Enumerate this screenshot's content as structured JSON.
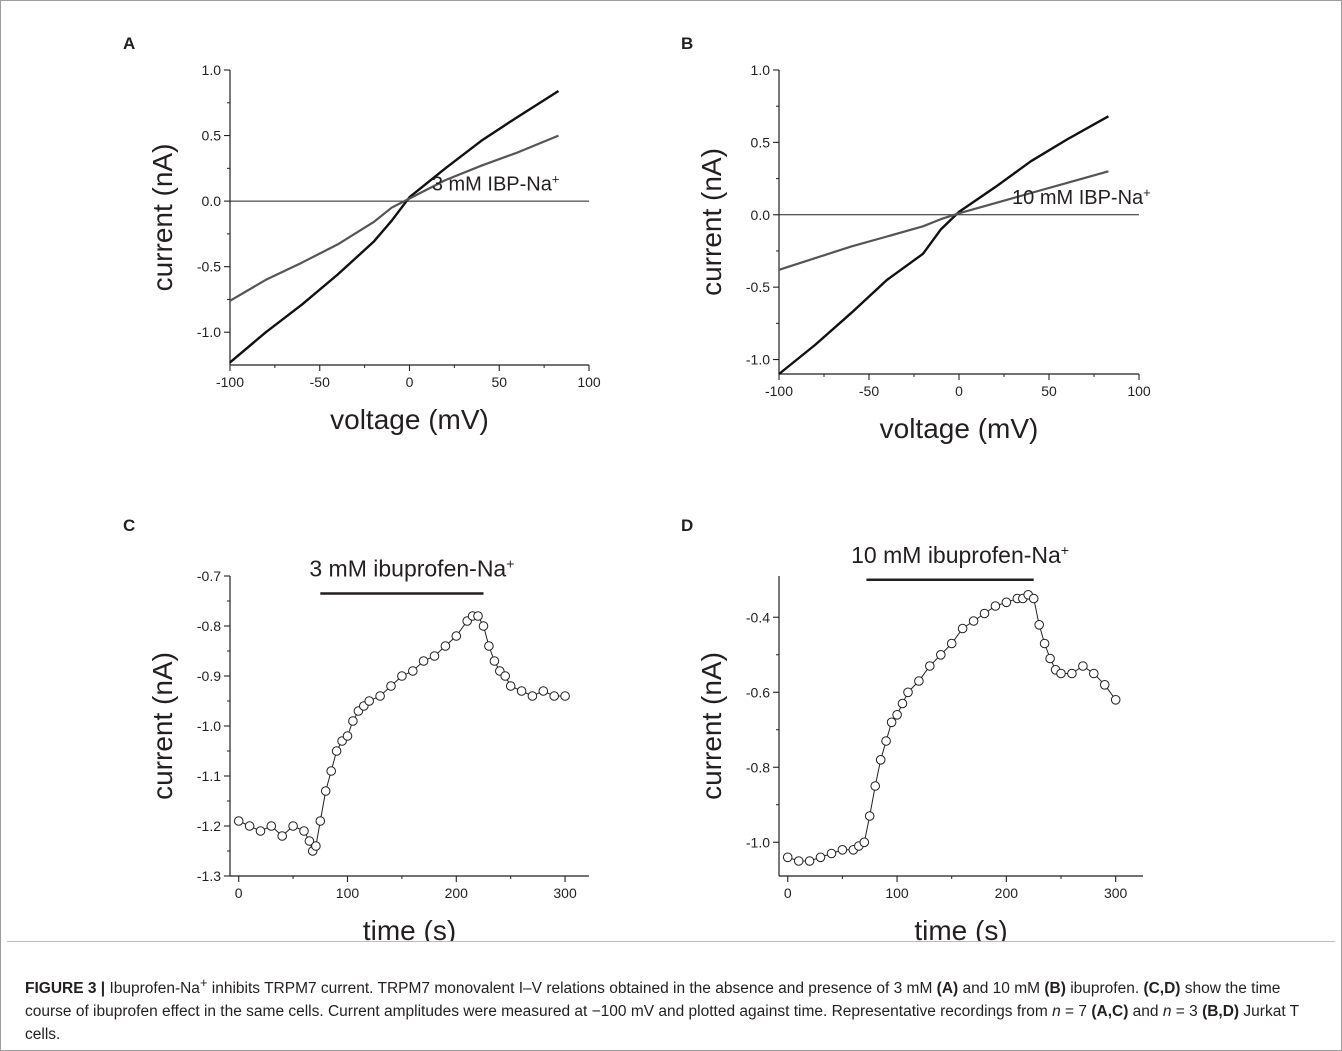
{
  "figure": {
    "caption": {
      "label": "FIGURE 3",
      "sep": "|",
      "s1": "Ibuprofen-Na",
      "s1sup": "+",
      "s2": " inhibits TRPM7 current. TRPM7 monovalent I–V relations obtained in the absence and presence of 3 mM ",
      "r1": "(A)",
      "s3": " and 10 mM ",
      "r2": "(B)",
      "s4": " ibuprofen. ",
      "r3": "(C,D)",
      "s5": " show the time course of ibuprofen effect in the same cells. Current amplitudes were measured at −100 mV and plotted against time. Representative recordings from ",
      "n1": "n",
      "s6": " = 7 ",
      "r4": "(A,C)",
      "s7": " and ",
      "n2": "n",
      "s8": " = 3 ",
      "r5": "(B,D)",
      "s9": " Jurkat T cells."
    }
  },
  "chart_data": [
    {
      "panel": "A",
      "type": "line",
      "xlabel": "voltage (mV)",
      "ylabel": "current (nA)",
      "xlim": [
        -100,
        100
      ],
      "ylim": [
        -1.25,
        1.0
      ],
      "xticks": [
        -100,
        -50,
        0,
        50,
        100
      ],
      "yticks": [
        -1.0,
        -0.5,
        0.0,
        0.5,
        1.0
      ],
      "xticklabels": [
        "-100",
        "-50",
        "0",
        "50",
        "100"
      ],
      "yticklabels": [
        "-1.0",
        "-0.5",
        "0.0",
        "0.5",
        "1.0"
      ],
      "zero_line": true,
      "annotation": {
        "text": "3 mM IBP-Na",
        "sup": "+",
        "x": 48,
        "y": 0.02
      },
      "series": [
        {
          "color": "#111111",
          "x": [
            -100,
            -80,
            -60,
            -40,
            -20,
            -10,
            0,
            20,
            40,
            60,
            83
          ],
          "y": [
            -1.23,
            -1.0,
            -0.79,
            -0.56,
            -0.31,
            -0.15,
            0.03,
            0.25,
            0.46,
            0.64,
            0.84
          ]
        },
        {
          "color": "#555555",
          "x": [
            -100,
            -80,
            -60,
            -40,
            -20,
            -10,
            0,
            20,
            40,
            60,
            83
          ],
          "y": [
            -0.76,
            -0.6,
            -0.47,
            -0.33,
            -0.16,
            -0.05,
            0.02,
            0.16,
            0.27,
            0.37,
            0.5
          ]
        }
      ]
    },
    {
      "panel": "B",
      "type": "line",
      "xlabel": "voltage (mV)",
      "ylabel": "current (nA)",
      "xlim": [
        -100,
        100
      ],
      "ylim": [
        -1.1,
        1.0
      ],
      "xticks": [
        -100,
        -50,
        0,
        50,
        100
      ],
      "yticks": [
        -1.0,
        -0.5,
        0.0,
        0.5,
        1.0
      ],
      "xticklabels": [
        "-100",
        "-50",
        "0",
        "50",
        "100"
      ],
      "yticklabels": [
        "-1.0",
        "-0.5",
        "0.0",
        "0.5",
        "1.0"
      ],
      "zero_line": true,
      "annotation": {
        "text": "10 mM IBP-Na",
        "sup": "+",
        "x": 68,
        "y": 0.02
      },
      "series": [
        {
          "color": "#111111",
          "x": [
            -100,
            -80,
            -60,
            -40,
            -20,
            -10,
            0,
            20,
            40,
            60,
            83
          ],
          "y": [
            -1.1,
            -0.9,
            -0.68,
            -0.45,
            -0.27,
            -0.1,
            0.02,
            0.19,
            0.37,
            0.52,
            0.68
          ]
        },
        {
          "color": "#555555",
          "x": [
            -100,
            -80,
            -60,
            -40,
            -20,
            -10,
            0,
            20,
            40,
            60,
            83
          ],
          "y": [
            -0.38,
            -0.3,
            -0.22,
            -0.15,
            -0.08,
            -0.03,
            0.01,
            0.08,
            0.15,
            0.22,
            0.3
          ]
        }
      ]
    },
    {
      "panel": "C",
      "type": "scatter",
      "xlabel": "time (s)",
      "ylabel": "current (nA)",
      "xlim": [
        -8,
        322
      ],
      "ylim": [
        -1.3,
        -0.7
      ],
      "xticks": [
        0,
        100,
        200,
        300
      ],
      "yticks": [
        -1.3,
        -1.2,
        -1.1,
        -1.0,
        -0.9,
        -0.8,
        -0.7
      ],
      "xticklabels": [
        "0",
        "100",
        "200",
        "300"
      ],
      "yticklabels": [
        "-1.3",
        "-1.2",
        "-1.1",
        "-1.0",
        "-0.9",
        "-0.8",
        "-0.7"
      ],
      "bar": {
        "label": "3 mM ibuprofen-Na",
        "sup": "+",
        "x_start": 75,
        "x_end": 225,
        "y": -0.735
      },
      "x": [
        0,
        10,
        20,
        30,
        40,
        50,
        60,
        65,
        68,
        71,
        75,
        80,
        85,
        90,
        95,
        100,
        105,
        110,
        115,
        120,
        130,
        140,
        150,
        160,
        170,
        180,
        190,
        200,
        210,
        215,
        220,
        225,
        230,
        235,
        240,
        245,
        250,
        260,
        270,
        280,
        290,
        300
      ],
      "y": [
        -1.19,
        -1.2,
        -1.21,
        -1.2,
        -1.22,
        -1.2,
        -1.21,
        -1.23,
        -1.25,
        -1.24,
        -1.19,
        -1.13,
        -1.09,
        -1.05,
        -1.03,
        -1.02,
        -0.99,
        -0.97,
        -0.96,
        -0.95,
        -0.94,
        -0.92,
        -0.9,
        -0.89,
        -0.87,
        -0.86,
        -0.84,
        -0.82,
        -0.79,
        -0.78,
        -0.78,
        -0.8,
        -0.84,
        -0.87,
        -0.89,
        -0.9,
        -0.92,
        -0.93,
        -0.94,
        -0.93,
        -0.94,
        -0.94
      ]
    },
    {
      "panel": "D",
      "type": "scatter",
      "xlabel": "time (s)",
      "ylabel": "current (nA)",
      "xlim": [
        -8,
        325
      ],
      "ylim": [
        -1.09,
        -0.29
      ],
      "xticks": [
        0,
        100,
        200,
        300
      ],
      "yticks": [
        -1.0,
        -0.8,
        -0.6,
        -0.4
      ],
      "xticklabels": [
        "0",
        "100",
        "200",
        "300"
      ],
      "yticklabels": [
        "-1.0",
        "-0.8",
        "-0.6",
        "-0.4"
      ],
      "bar": {
        "label": "10 mM ibuprofen-Na",
        "sup": "+",
        "x_start": 72,
        "x_end": 225,
        "y": -0.3
      },
      "x": [
        0,
        10,
        20,
        30,
        40,
        50,
        60,
        65,
        70,
        75,
        80,
        85,
        90,
        95,
        100,
        105,
        110,
        120,
        130,
        140,
        150,
        160,
        170,
        180,
        190,
        200,
        210,
        215,
        220,
        225,
        230,
        235,
        240,
        245,
        250,
        260,
        270,
        280,
        290,
        300
      ],
      "y": [
        -1.04,
        -1.05,
        -1.05,
        -1.04,
        -1.03,
        -1.02,
        -1.02,
        -1.01,
        -1.0,
        -0.93,
        -0.85,
        -0.78,
        -0.73,
        -0.68,
        -0.66,
        -0.63,
        -0.6,
        -0.57,
        -0.53,
        -0.5,
        -0.47,
        -0.43,
        -0.41,
        -0.39,
        -0.37,
        -0.36,
        -0.35,
        -0.35,
        -0.34,
        -0.35,
        -0.42,
        -0.47,
        -0.51,
        -0.54,
        -0.55,
        -0.55,
        -0.53,
        -0.55,
        -0.58,
        -0.62
      ]
    }
  ]
}
